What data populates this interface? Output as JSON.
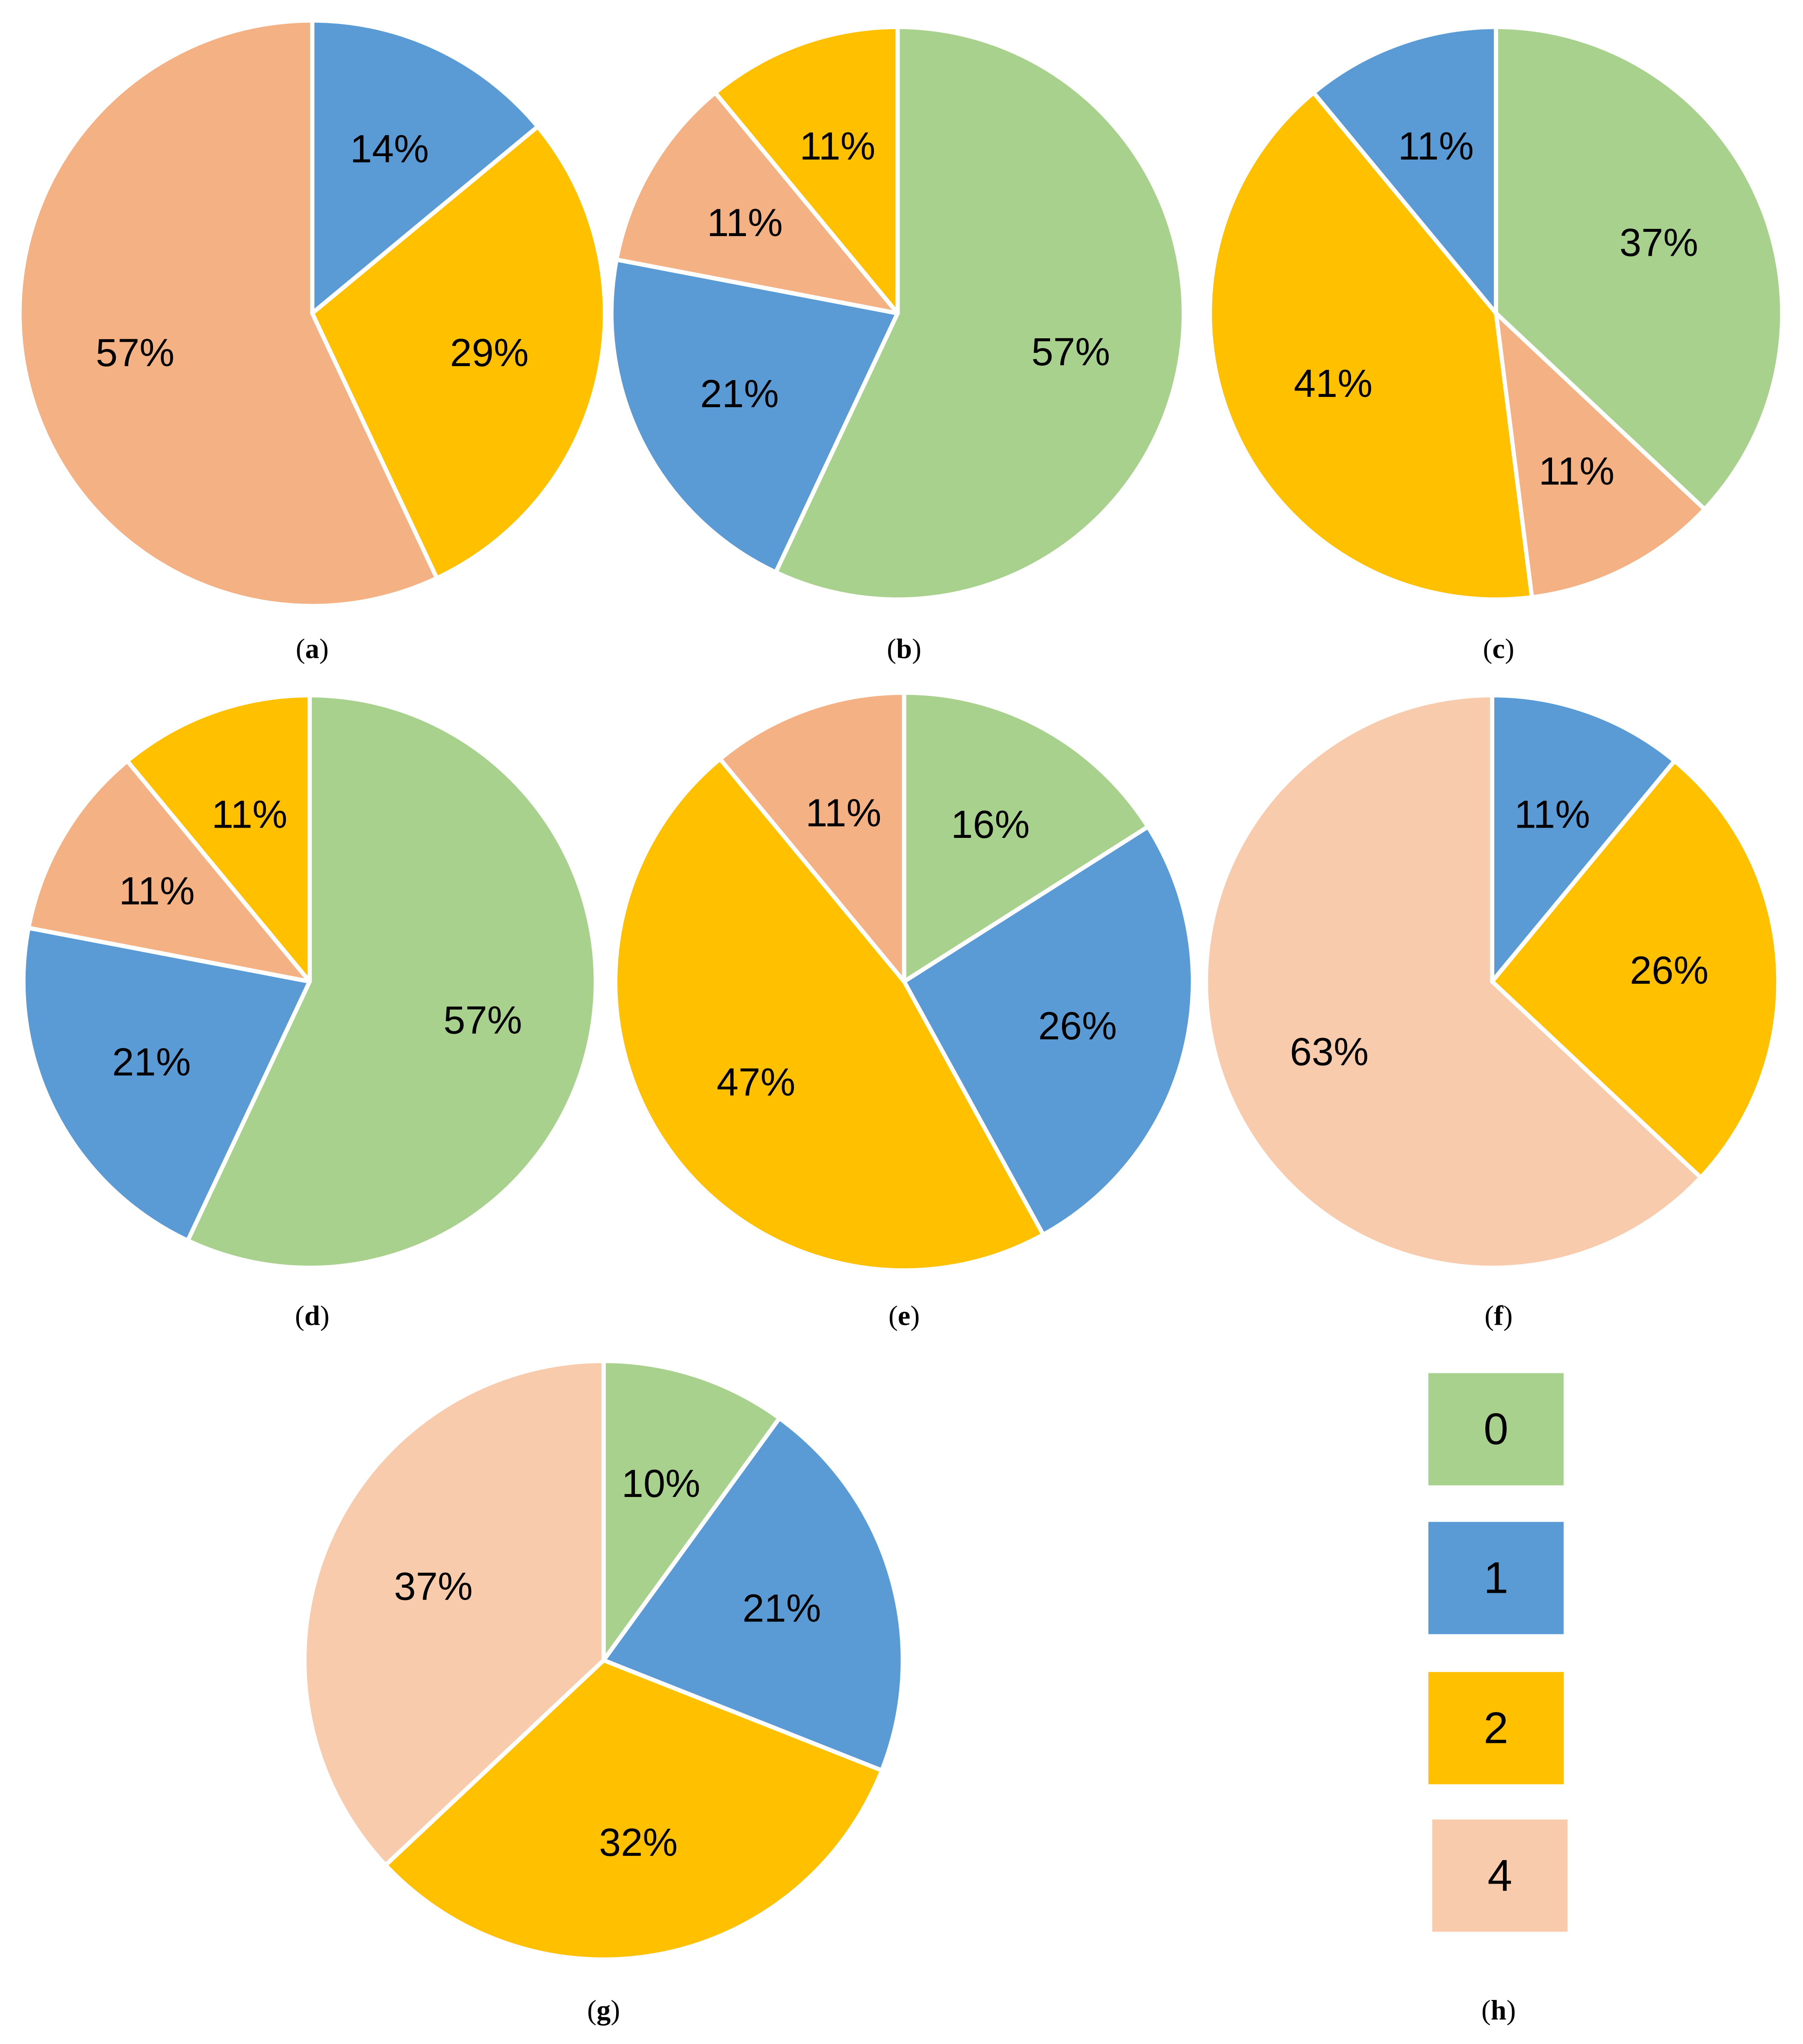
{
  "colors": {
    "0": "#A9D18E",
    "1": "#5B9BD5",
    "2": "#FFC000",
    "4a": "#F4B183",
    "4b": "#F8CBAD"
  },
  "chart_data": [
    {
      "type": "pie",
      "caption": "a",
      "slices": [
        {
          "category": "1",
          "value": 14,
          "label": "14%",
          "color": "#5B9BD5"
        },
        {
          "category": "2",
          "value": 29,
          "label": "29%",
          "color": "#FFC000"
        },
        {
          "category": "4",
          "value": 57,
          "label": "57%",
          "color": "#F4B183"
        }
      ]
    },
    {
      "type": "pie",
      "caption": "b",
      "slices": [
        {
          "category": "0",
          "value": 57,
          "label": "57%",
          "color": "#A9D18E"
        },
        {
          "category": "1",
          "value": 21,
          "label": "21%",
          "color": "#5B9BD5"
        },
        {
          "category": "4",
          "value": 11,
          "label": "11%",
          "color": "#F4B183"
        },
        {
          "category": "2",
          "value": 11,
          "label": "11%",
          "color": "#FFC000"
        }
      ]
    },
    {
      "type": "pie",
      "caption": "c",
      "slices": [
        {
          "category": "0",
          "value": 37,
          "label": "37%",
          "color": "#A9D18E"
        },
        {
          "category": "4",
          "value": 11,
          "label": "11%",
          "color": "#F4B183"
        },
        {
          "category": "2",
          "value": 41,
          "label": "41%",
          "color": "#FFC000"
        },
        {
          "category": "1",
          "value": 11,
          "label": "11%",
          "color": "#5B9BD5"
        }
      ]
    },
    {
      "type": "pie",
      "caption": "d",
      "slices": [
        {
          "category": "0",
          "value": 57,
          "label": "57%",
          "color": "#A9D18E"
        },
        {
          "category": "1",
          "value": 21,
          "label": "21%",
          "color": "#5B9BD5"
        },
        {
          "category": "4",
          "value": 11,
          "label": "11%",
          "color": "#F4B183"
        },
        {
          "category": "2",
          "value": 11,
          "label": "11%",
          "color": "#FFC000"
        }
      ]
    },
    {
      "type": "pie",
      "caption": "e",
      "slices": [
        {
          "category": "0",
          "value": 16,
          "label": "16%",
          "color": "#A9D18E"
        },
        {
          "category": "1",
          "value": 26,
          "label": "26%",
          "color": "#5B9BD5"
        },
        {
          "category": "2",
          "value": 47,
          "label": "47%",
          "color": "#FFC000"
        },
        {
          "category": "4",
          "value": 11,
          "label": "11%",
          "color": "#F4B183"
        }
      ]
    },
    {
      "type": "pie",
      "caption": "f",
      "slices": [
        {
          "category": "1",
          "value": 11,
          "label": "11%",
          "color": "#5B9BD5"
        },
        {
          "category": "2",
          "value": 26,
          "label": "26%",
          "color": "#FFC000"
        },
        {
          "category": "4",
          "value": 63,
          "label": "63%",
          "color": "#F8CBAD"
        }
      ]
    },
    {
      "type": "pie",
      "caption": "g",
      "slices": [
        {
          "category": "0",
          "value": 10,
          "label": "10%",
          "color": "#A9D18E"
        },
        {
          "category": "1",
          "value": 21,
          "label": "21%",
          "color": "#5B9BD5"
        },
        {
          "category": "2",
          "value": 32,
          "label": "32%",
          "color": "#FFC000"
        },
        {
          "category": "4",
          "value": 37,
          "label": "37%",
          "color": "#F8CBAD"
        }
      ]
    }
  ],
  "legend": {
    "caption": "h",
    "entries": [
      {
        "label": "0",
        "color": "#A9D18E"
      },
      {
        "label": "1",
        "color": "#5B9BD5"
      },
      {
        "label": "2",
        "color": "#FFC000"
      },
      {
        "label": "4",
        "color": "#F8CBAD"
      }
    ]
  }
}
